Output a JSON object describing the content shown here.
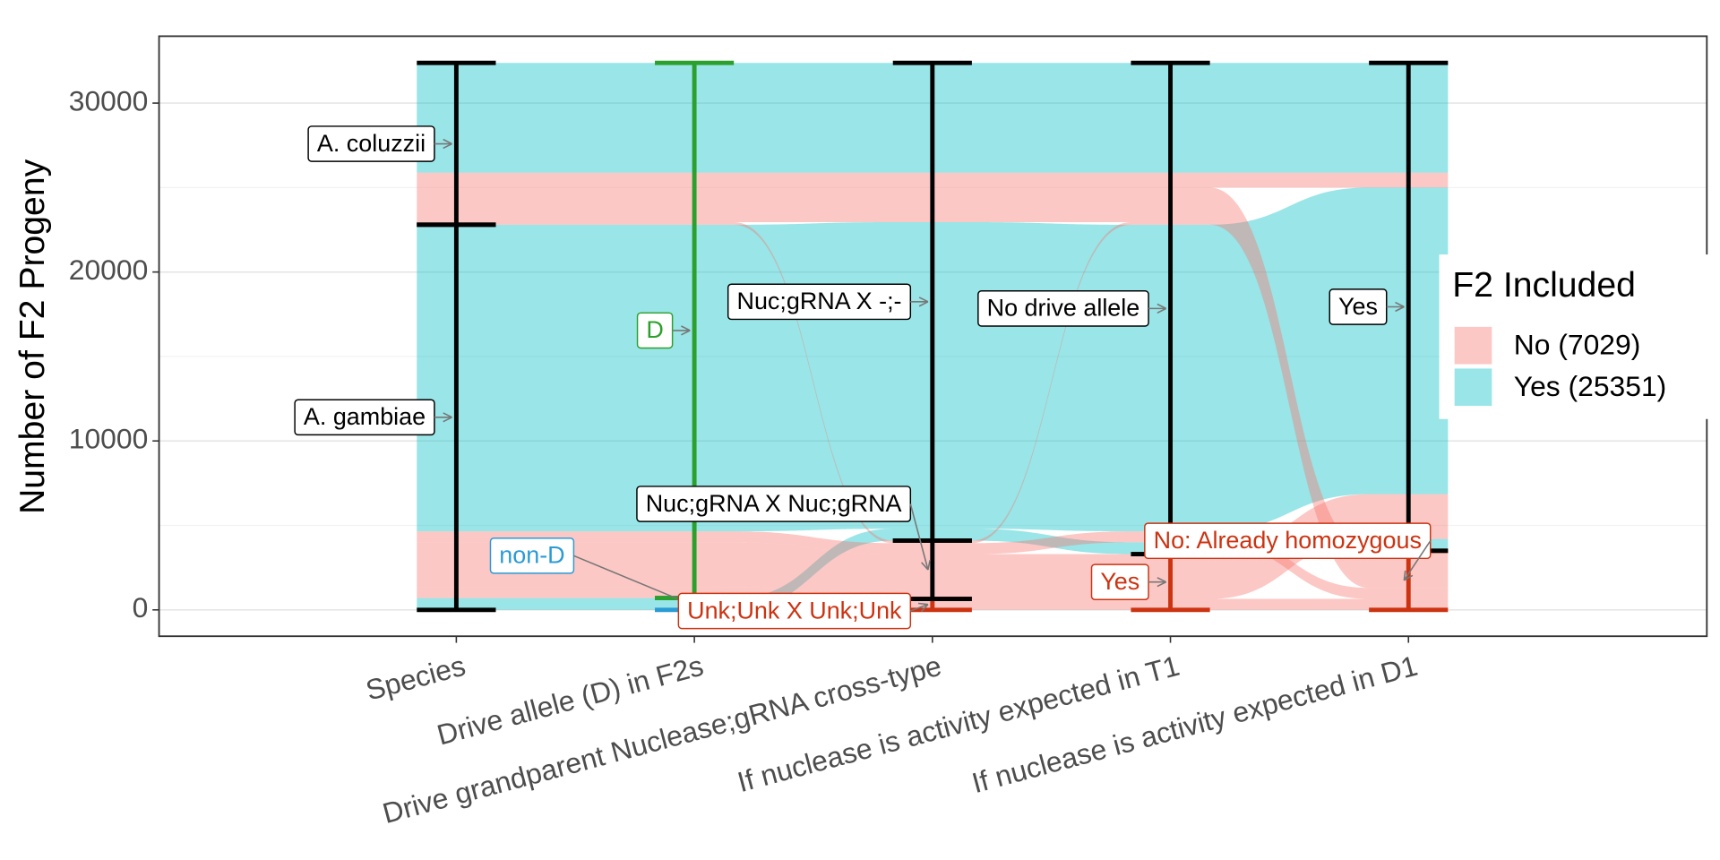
{
  "chart_data": {
    "type": "alluvial",
    "y_label": "Number of F2 Progeny",
    "ylim": [
      -1560,
      33960
    ],
    "yticks": [
      0,
      10000,
      20000,
      30000
    ],
    "grid": true,
    "axes": [
      {
        "name": "Species",
        "strata": [
          {
            "label": "A. gambiae",
            "color": "#000000"
          },
          {
            "label": "A. coluzzii",
            "color": "#000000"
          }
        ]
      },
      {
        "name": "Drive allele (D) in F2s",
        "strata": [
          {
            "label": "non-D",
            "color": "#2B9BD6"
          },
          {
            "label": "D",
            "color": "#2CA02C"
          }
        ]
      },
      {
        "name": "Drive grandparent Nuclease;gRNA cross-type",
        "strata": [
          {
            "label": "Unk;Unk X Unk;Unk",
            "color": "#CC3311"
          },
          {
            "label": "Nuc;gRNA X Nuc;gRNA",
            "color": "#000000"
          },
          {
            "label": "Nuc;gRNA X -;-",
            "color": "#000000"
          }
        ]
      },
      {
        "name": "If nuclease is activity expected in T1",
        "strata": [
          {
            "label": "Yes",
            "color": "#CC3311"
          },
          {
            "label": "No drive allele",
            "color": "#000000"
          }
        ]
      },
      {
        "name": "If nuclease is activity expected in D1",
        "strata": [
          {
            "label": "No: Already homozygous",
            "color": "#CC3311"
          },
          {
            "label": "Yes",
            "color": "#000000"
          }
        ]
      }
    ],
    "fill": {
      "title": "F2 Included",
      "groups": [
        {
          "name": "No (7029)",
          "color": "#F8766D"
        },
        {
          "name": "Yes (25351)",
          "color": "#00BFC4"
        }
      ]
    },
    "alluvia": [
      {
        "group": 1,
        "strata": [
          0,
          0,
          2,
          1,
          1
        ],
        "count": 700
      },
      {
        "group": 0,
        "strata": [
          0,
          1,
          0,
          0,
          0
        ],
        "count": 650
      },
      {
        "group": 0,
        "strata": [
          0,
          1,
          1,
          0,
          1
        ],
        "count": 2650
      },
      {
        "group": 0,
        "strata": [
          0,
          1,
          1,
          1,
          0
        ],
        "count": 650
      },
      {
        "group": 1,
        "strata": [
          0,
          1,
          2,
          1,
          1
        ],
        "count": 18150
      },
      {
        "group": 0,
        "strata": [
          1,
          1,
          1,
          1,
          0
        ],
        "count": 150
      },
      {
        "group": 0,
        "strata": [
          1,
          1,
          2,
          1,
          0
        ],
        "count": 2050
      },
      {
        "group": 0,
        "strata": [
          1,
          1,
          2,
          1,
          1
        ],
        "count": 879
      },
      {
        "group": 1,
        "strata": [
          1,
          1,
          2,
          1,
          1
        ],
        "count": 6501
      }
    ]
  }
}
